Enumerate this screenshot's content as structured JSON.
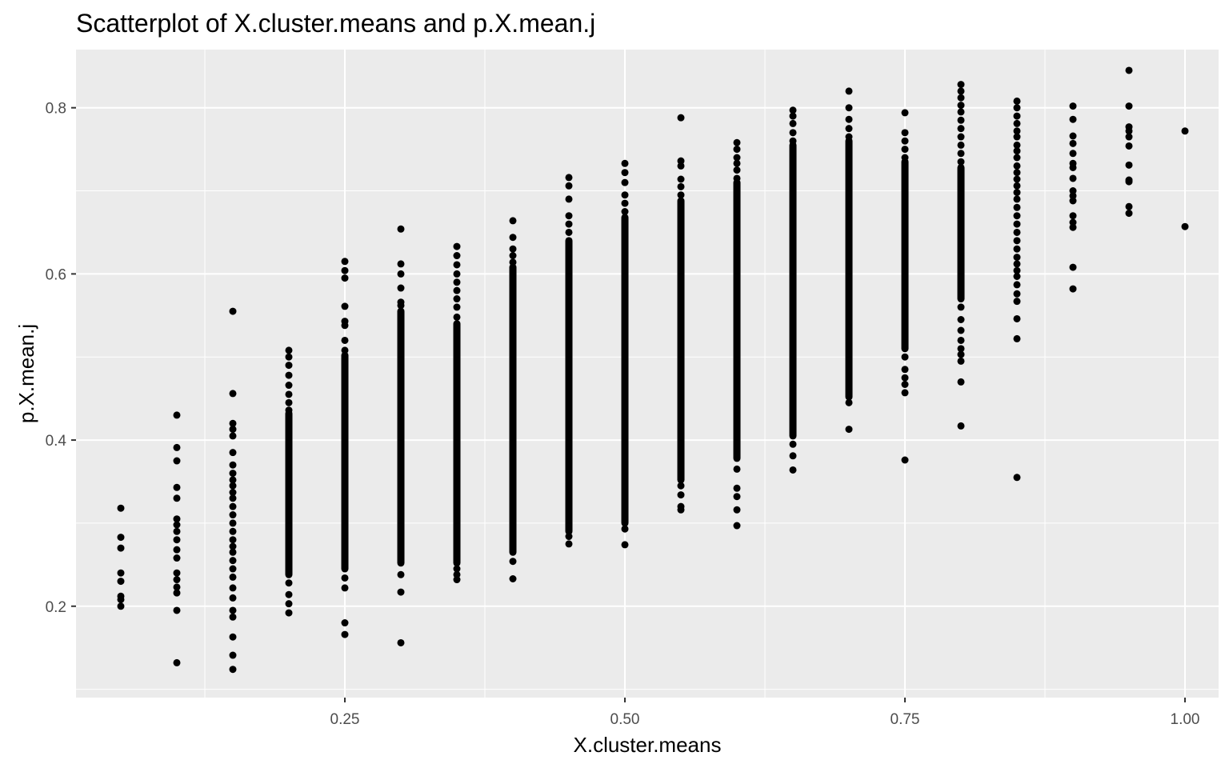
{
  "chart_data": {
    "type": "scatter",
    "title": "Scatterplot of X.cluster.means and p.X.mean.j",
    "xlabel": "X.cluster.means",
    "ylabel": "p.X.mean.j",
    "xlim": [
      0.01,
      1.03
    ],
    "ylim": [
      0.09,
      0.87
    ],
    "x_ticks": [
      {
        "value": 0.25,
        "label": "0.25"
      },
      {
        "value": 0.5,
        "label": "0.50"
      },
      {
        "value": 0.75,
        "label": "0.75"
      },
      {
        "value": 1.0,
        "label": "1.00"
      }
    ],
    "y_ticks": [
      {
        "value": 0.2,
        "label": "0.2"
      },
      {
        "value": 0.4,
        "label": "0.4"
      },
      {
        "value": 0.6,
        "label": "0.6"
      },
      {
        "value": 0.8,
        "label": "0.8"
      }
    ],
    "grid": true,
    "legend": "none",
    "panel_color": "#ebebeb",
    "point_color": "#000000",
    "columns": [
      {
        "x": 0.05,
        "points": [
          0.318,
          0.283,
          0.27,
          0.24,
          0.23,
          0.212,
          0.208,
          0.2
        ],
        "ranges": []
      },
      {
        "x": 0.1,
        "points": [
          0.43,
          0.391,
          0.375,
          0.343,
          0.33,
          0.305,
          0.298,
          0.29,
          0.28,
          0.268,
          0.258,
          0.24,
          0.232,
          0.223,
          0.216,
          0.195,
          0.132
        ],
        "ranges": []
      },
      {
        "x": 0.15,
        "points": [
          0.555,
          0.456,
          0.42,
          0.413,
          0.405,
          0.385,
          0.37,
          0.36,
          0.352,
          0.345,
          0.337,
          0.33,
          0.32,
          0.31,
          0.3,
          0.29,
          0.28,
          0.272,
          0.265,
          0.255,
          0.245,
          0.235,
          0.222,
          0.21,
          0.195,
          0.187,
          0.163,
          0.141,
          0.124
        ],
        "ranges": []
      },
      {
        "x": 0.2,
        "points": [
          0.508,
          0.5,
          0.49,
          0.478,
          0.466,
          0.455,
          0.445,
          0.436,
          0.228,
          0.214,
          0.203,
          0.192
        ],
        "ranges": [
          [
            0.238,
            0.432
          ]
        ]
      },
      {
        "x": 0.25,
        "points": [
          0.615,
          0.604,
          0.595,
          0.561,
          0.543,
          0.538,
          0.52,
          0.508,
          0.234,
          0.222,
          0.18,
          0.166
        ],
        "ranges": [
          [
            0.245,
            0.502
          ]
        ]
      },
      {
        "x": 0.3,
        "points": [
          0.654,
          0.612,
          0.6,
          0.583,
          0.566,
          0.562,
          0.238,
          0.217,
          0.156
        ],
        "ranges": [
          [
            0.252,
            0.555
          ]
        ]
      },
      {
        "x": 0.35,
        "points": [
          0.633,
          0.622,
          0.611,
          0.6,
          0.59,
          0.58,
          0.57,
          0.56,
          0.548,
          0.245,
          0.238,
          0.232
        ],
        "ranges": [
          [
            0.252,
            0.54
          ]
        ]
      },
      {
        "x": 0.4,
        "points": [
          0.664,
          0.644,
          0.63,
          0.622,
          0.614,
          0.254,
          0.233
        ],
        "ranges": [
          [
            0.265,
            0.608
          ]
        ]
      },
      {
        "x": 0.45,
        "points": [
          0.716,
          0.706,
          0.69,
          0.67,
          0.66,
          0.65,
          0.275,
          0.284
        ],
        "ranges": [
          [
            0.29,
            0.64
          ]
        ]
      },
      {
        "x": 0.5,
        "points": [
          0.733,
          0.722,
          0.71,
          0.695,
          0.685,
          0.675,
          0.293,
          0.274
        ],
        "ranges": [
          [
            0.3,
            0.668
          ]
        ]
      },
      {
        "x": 0.55,
        "points": [
          0.788,
          0.736,
          0.73,
          0.714,
          0.705,
          0.695,
          0.345,
          0.334,
          0.32,
          0.316
        ],
        "ranges": [
          [
            0.352,
            0.688
          ]
        ]
      },
      {
        "x": 0.6,
        "points": [
          0.758,
          0.75,
          0.74,
          0.733,
          0.725,
          0.715,
          0.365,
          0.342,
          0.332,
          0.316,
          0.297
        ],
        "ranges": [
          [
            0.378,
            0.71
          ]
        ]
      },
      {
        "x": 0.65,
        "points": [
          0.797,
          0.79,
          0.781,
          0.77,
          0.76,
          0.395,
          0.381,
          0.364
        ],
        "ranges": [
          [
            0.405,
            0.755
          ]
        ]
      },
      {
        "x": 0.7,
        "points": [
          0.82,
          0.8,
          0.786,
          0.775,
          0.765,
          0.445,
          0.413
        ],
        "ranges": [
          [
            0.452,
            0.76
          ]
        ]
      },
      {
        "x": 0.75,
        "points": [
          0.794,
          0.77,
          0.76,
          0.75,
          0.74,
          0.5,
          0.485,
          0.475,
          0.467,
          0.457,
          0.376
        ],
        "ranges": [
          [
            0.51,
            0.735
          ]
        ]
      },
      {
        "x": 0.8,
        "points": [
          0.828,
          0.82,
          0.812,
          0.803,
          0.795,
          0.785,
          0.775,
          0.765,
          0.755,
          0.745,
          0.735,
          0.56,
          0.545,
          0.532,
          0.52,
          0.51,
          0.503,
          0.495,
          0.47,
          0.417
        ],
        "ranges": [
          [
            0.57,
            0.728
          ]
        ]
      },
      {
        "x": 0.85,
        "points": [
          0.808,
          0.8,
          0.79,
          0.781,
          0.772,
          0.765,
          0.755,
          0.748,
          0.74,
          0.73,
          0.722,
          0.714,
          0.706,
          0.698,
          0.69,
          0.68,
          0.67,
          0.66,
          0.65,
          0.64,
          0.63,
          0.62,
          0.612,
          0.604,
          0.597,
          0.587,
          0.576,
          0.567,
          0.546,
          0.522,
          0.355
        ],
        "ranges": []
      },
      {
        "x": 0.9,
        "points": [
          0.802,
          0.786,
          0.766,
          0.757,
          0.745,
          0.733,
          0.728,
          0.715,
          0.7,
          0.694,
          0.688,
          0.67,
          0.662,
          0.656,
          0.608,
          0.582
        ],
        "ranges": []
      },
      {
        "x": 0.95,
        "points": [
          0.845,
          0.802,
          0.777,
          0.772,
          0.765,
          0.754,
          0.731,
          0.713,
          0.711,
          0.681,
          0.673
        ],
        "ranges": []
      },
      {
        "x": 1.0,
        "points": [
          0.772,
          0.657
        ],
        "ranges": []
      }
    ]
  }
}
